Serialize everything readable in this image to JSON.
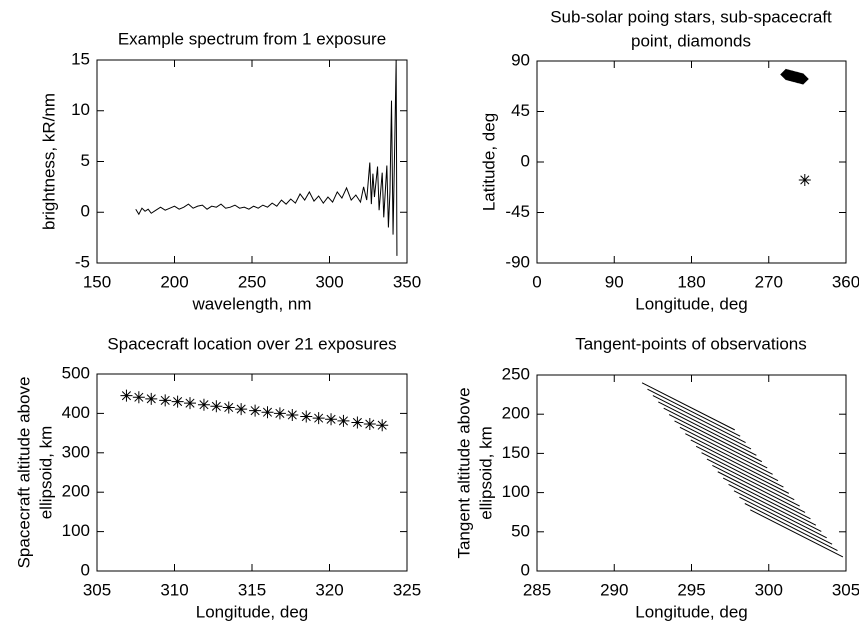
{
  "chart_data": [
    {
      "type": "line",
      "title": [
        "Example spectrum from 1 exposure"
      ],
      "xlabel": "wavelength, nm",
      "ylabel": [
        "brightness, kR/nm"
      ],
      "color": "#000000",
      "xlim": [
        150,
        350
      ],
      "xticks": [
        150,
        200,
        250,
        300,
        350
      ],
      "ylim": [
        -5,
        15
      ],
      "yticks": [
        -5,
        0,
        5,
        10,
        15
      ],
      "series": [
        {
          "x": [
            175,
            177,
            179,
            181,
            183,
            185,
            188,
            191,
            194,
            197,
            200,
            203,
            206,
            209,
            212,
            215,
            218,
            221,
            224,
            227,
            230,
            233,
            236,
            239,
            242,
            245,
            248,
            251,
            254,
            257,
            260,
            263,
            266,
            269,
            272,
            275,
            278,
            281,
            284,
            287,
            290,
            293,
            296,
            299,
            302,
            305,
            308,
            311,
            314,
            317,
            320,
            322,
            324,
            326,
            327,
            328,
            329,
            331,
            332,
            334,
            335,
            337,
            338,
            339,
            340,
            341,
            342,
            343,
            343.5
          ],
          "y": [
            0.3,
            -0.2,
            0.4,
            0.1,
            0.3,
            -0.1,
            0.2,
            0.5,
            0.2,
            0.4,
            0.6,
            0.3,
            0.5,
            0.8,
            0.4,
            0.6,
            0.7,
            0.3,
            0.6,
            0.5,
            0.8,
            0.4,
            0.5,
            0.7,
            0.4,
            0.5,
            0.3,
            0.6,
            0.4,
            0.7,
            0.5,
            0.9,
            0.6,
            1.2,
            0.8,
            1.3,
            0.9,
            1.8,
            1.2,
            2.0,
            1.1,
            1.6,
            0.9,
            1.5,
            1.0,
            2.0,
            1.4,
            2.4,
            1.2,
            1.7,
            1.0,
            2.5,
            1.2,
            4.9,
            0.8,
            3.8,
            1.5,
            4.5,
            0.2,
            3.9,
            -0.5,
            4.6,
            -1.5,
            2.0,
            11,
            -2.2,
            6,
            15,
            -4.3
          ]
        }
      ]
    },
    {
      "type": "scatter",
      "title": [
        "Sub-solar poing stars, sub-spacecraft",
        "point, diamonds"
      ],
      "xlabel": "Longitude, deg",
      "ylabel": [
        "Latitude, deg"
      ],
      "color": "#000000",
      "xlim": [
        0,
        360
      ],
      "xticks": [
        0,
        90,
        180,
        270,
        360
      ],
      "ylim": [
        -90,
        90
      ],
      "yticks": [
        -90,
        -45,
        0,
        45,
        90
      ],
      "series": [
        {
          "marker": "diamond",
          "x": [
            290,
            291,
            292,
            293,
            294,
            295,
            296,
            297,
            298,
            299,
            300,
            301,
            302,
            303,
            304,
            305,
            306,
            307,
            308,
            309,
            310
          ],
          "y": [
            78,
            77.8,
            77.6,
            77.4,
            77.2,
            77,
            76.8,
            76.6,
            76.4,
            76.2,
            76,
            75.8,
            75.6,
            75.4,
            75.2,
            75,
            74.8,
            74.6,
            74.4,
            74.2,
            74
          ]
        },
        {
          "marker": "asterisk",
          "x": [
            312
          ],
          "y": [
            -16
          ]
        }
      ]
    },
    {
      "type": "scatter",
      "title": [
        "Spacecraft location over 21 exposures"
      ],
      "xlabel": "Longitude, deg",
      "ylabel": [
        "Spacecraft altitude above",
        "ellipsoid, km"
      ],
      "color": "#000000",
      "xlim": [
        305,
        325
      ],
      "xticks": [
        305,
        310,
        315,
        320,
        325
      ],
      "ylim": [
        0,
        500
      ],
      "yticks": [
        0,
        100,
        200,
        300,
        400,
        500
      ],
      "series": [
        {
          "marker": "asterisk",
          "x": [
            306.9,
            307.7,
            308.5,
            309.4,
            310.2,
            311.0,
            311.9,
            312.7,
            313.5,
            314.3,
            315.2,
            316.0,
            316.8,
            317.6,
            318.5,
            319.3,
            320.1,
            320.9,
            321.8,
            322.6,
            323.4
          ],
          "y": [
            445,
            441,
            437,
            433,
            430,
            426,
            422,
            418,
            415,
            411,
            407,
            403,
            400,
            396,
            392,
            388,
            385,
            381,
            377,
            373,
            370
          ]
        }
      ]
    },
    {
      "type": "line",
      "title": [
        "Tangent-points of observations"
      ],
      "xlabel": "Longitude, deg",
      "ylabel": [
        "Tangent altitude above",
        "ellipsoid, km"
      ],
      "color": "#000000",
      "xlim": [
        285,
        305
      ],
      "xticks": [
        285,
        290,
        295,
        300,
        305
      ],
      "ylim": [
        0,
        250
      ],
      "yticks": [
        0,
        50,
        100,
        150,
        200,
        250
      ],
      "series": [
        {
          "x": [
            291.8,
            297.8
          ],
          "y": [
            240,
            180
          ]
        },
        {
          "x": [
            292.15,
            298.15
          ],
          "y": [
            231.9,
            171.9
          ]
        },
        {
          "x": [
            292.5,
            298.5
          ],
          "y": [
            223.8,
            163.8
          ]
        },
        {
          "x": [
            292.85,
            298.85
          ],
          "y": [
            215.7,
            155.7
          ]
        },
        {
          "x": [
            293.2,
            299.2
          ],
          "y": [
            207.6,
            147.6
          ]
        },
        {
          "x": [
            293.55,
            299.55
          ],
          "y": [
            199.5,
            139.5
          ]
        },
        {
          "x": [
            293.9,
            299.9
          ],
          "y": [
            191.4,
            131.4
          ]
        },
        {
          "x": [
            294.25,
            300.25
          ],
          "y": [
            183.3,
            123.3
          ]
        },
        {
          "x": [
            294.6,
            300.6
          ],
          "y": [
            175.2,
            115.2
          ]
        },
        {
          "x": [
            294.95,
            300.95
          ],
          "y": [
            167.1,
            107.1
          ]
        },
        {
          "x": [
            295.3,
            301.3
          ],
          "y": [
            159,
            99
          ]
        },
        {
          "x": [
            295.65,
            301.65
          ],
          "y": [
            150.9,
            90.9
          ]
        },
        {
          "x": [
            296.0,
            302.0
          ],
          "y": [
            142.8,
            82.8
          ]
        },
        {
          "x": [
            296.35,
            302.35
          ],
          "y": [
            134.7,
            74.7
          ]
        },
        {
          "x": [
            296.7,
            302.7
          ],
          "y": [
            126.6,
            66.6
          ]
        },
        {
          "x": [
            297.05,
            303.05
          ],
          "y": [
            118.5,
            58.5
          ]
        },
        {
          "x": [
            297.4,
            303.4
          ],
          "y": [
            110.4,
            50.4
          ]
        },
        {
          "x": [
            297.75,
            303.75
          ],
          "y": [
            102.3,
            42.3
          ]
        },
        {
          "x": [
            298.1,
            304.1
          ],
          "y": [
            94.2,
            34.2
          ]
        },
        {
          "x": [
            298.45,
            304.45
          ],
          "y": [
            86.1,
            26.1
          ]
        },
        {
          "x": [
            298.8,
            304.8
          ],
          "y": [
            78,
            18
          ]
        }
      ]
    }
  ]
}
